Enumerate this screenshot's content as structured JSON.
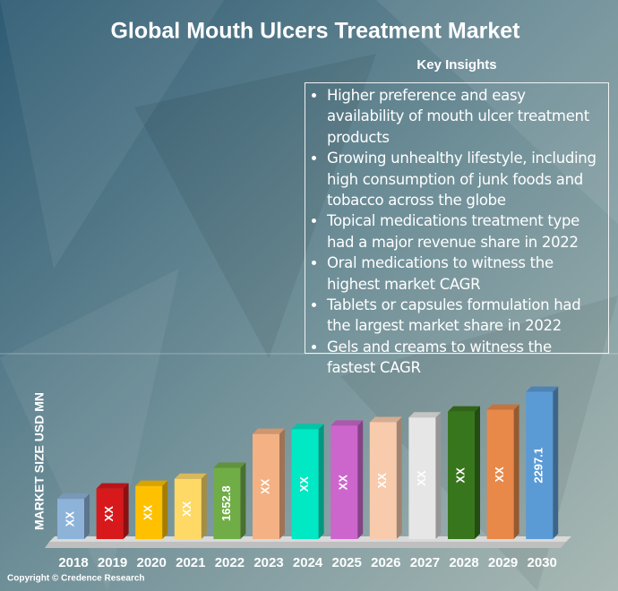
{
  "title": "Global Mouth Ulcers Treatment Market",
  "insights": {
    "heading": "Key Insights",
    "items": [
      "Higher preference and easy availability of mouth ulcer treatment products",
      "Growing unhealthy lifestyle, including high consumption of junk foods and tobacco across the globe",
      "Topical medications treatment type had a major revenue share in 2022",
      "Oral medications to witness the highest market CAGR",
      "Tablets or capsules formulation had the largest market share in 2022",
      "Gels and creams to witness the fastest CAGR"
    ]
  },
  "footer": "Copyright © Credence Research",
  "chart_data": {
    "type": "bar",
    "y_label": "MARKET SIZE USD MN",
    "categories": [
      "2018",
      "2019",
      "2020",
      "2021",
      "2022",
      "2023",
      "2024",
      "2025",
      "2026",
      "2027",
      "2028",
      "2029",
      "2030"
    ],
    "values": [
      1390,
      1478,
      1500,
      1560,
      1652.8,
      1940,
      1980,
      2010,
      2040,
      2080,
      2130,
      2145,
      2297.1
    ],
    "value_labels": [
      "XX",
      "XX",
      "XX",
      "XX",
      "1652.8",
      "XX",
      "XX",
      "XX",
      "XX",
      "XX",
      "XX",
      "XX",
      "2297.1"
    ],
    "colors": [
      "#8db3d9",
      "#d7191c",
      "#ffc000",
      "#ffd966",
      "#70ad47",
      "#f4b183",
      "#00e8c4",
      "#cc66cc",
      "#f8cbad",
      "#e6e6e6",
      "#38761d",
      "#e8894a",
      "#5b9bd5"
    ],
    "ylim": [
      1050,
      2400
    ]
  }
}
